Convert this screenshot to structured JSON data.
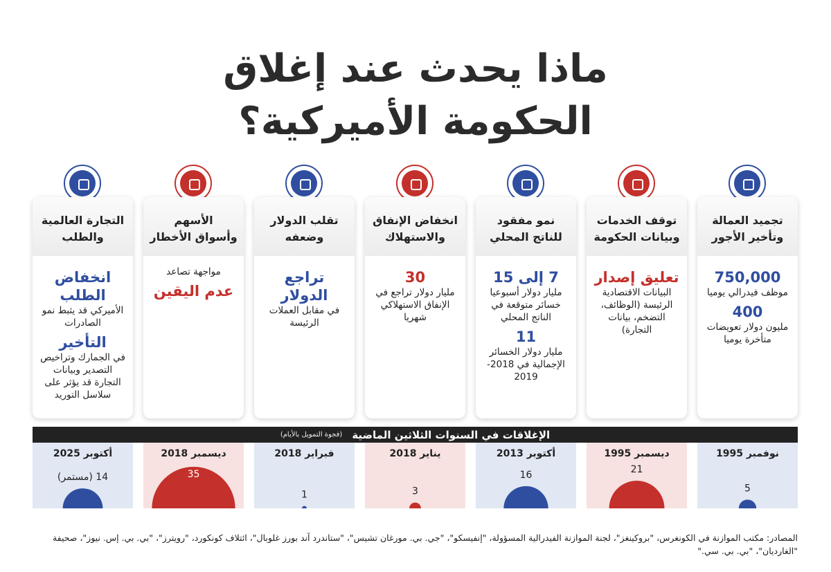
{
  "title": [
    "ماذا يحدث عند إغلاق",
    "الحكومة الأميركية؟"
  ],
  "cards": [
    {
      "color": "#2f4ea0",
      "header": [
        "تجميد العمالة",
        "وتأخير الأجور"
      ],
      "body": [
        {
          "style": "hl",
          "text": "750,000"
        },
        {
          "style": "normal",
          "text": "موظف فيدرالي يوميا"
        },
        {
          "style": "hl",
          "text": "400"
        },
        {
          "style": "normal",
          "text": "مليون دولار تعويضات متأخرة يوميا"
        }
      ]
    },
    {
      "color": "#c4302b",
      "header": [
        "توقف الخدمات",
        "وبيانات الحكومة"
      ],
      "body": [
        {
          "style": "hl",
          "text": "تعليق إصدار"
        },
        {
          "style": "normal",
          "text": "البيانات الاقتصادية الرئيسة (الوظائف، التضخم، بيانات التجارة)"
        }
      ]
    },
    {
      "color": "#2f4ea0",
      "header": [
        "نمو مفقود",
        "للناتج المحلي"
      ],
      "body": [
        {
          "style": "hl",
          "text": "7 إلى 15"
        },
        {
          "style": "normal",
          "text": "مليار دولار أسبوعيا خسائر متوقعة في الناتج المحلي"
        },
        {
          "style": "hl",
          "text": "11"
        },
        {
          "style": "normal",
          "text": "مليار دولار الخسائر الإجمالية في 2018-2019"
        }
      ]
    },
    {
      "color": "#c4302b",
      "header": [
        "انخفاض الإنفاق",
        "والاستهلاك"
      ],
      "body": [
        {
          "style": "hl",
          "text": "30"
        },
        {
          "style": "normal",
          "text": "مليار دولار تراجع في الإنفاق الاستهلاكي شهريا"
        }
      ]
    },
    {
      "color": "#2f4ea0",
      "header": [
        "تقلب الدولار",
        "وضعفه"
      ],
      "body": [
        {
          "style": "hl",
          "text": "تراجع الدولار"
        },
        {
          "style": "normal",
          "text": "في مقابل العملات الرئيسة"
        }
      ]
    },
    {
      "color": "#c4302b",
      "header": [
        "الأسهم",
        "وأسواق الأخطار"
      ],
      "body": [
        {
          "style": "normal",
          "text": "مواجهة تصاعد"
        },
        {
          "style": "hl",
          "text": "عدم اليقين"
        }
      ]
    },
    {
      "color": "#2f4ea0",
      "header": [
        "التجارة العالمية",
        "والطلب"
      ],
      "body": [
        {
          "style": "hl",
          "text": "انخفاض الطلب"
        },
        {
          "style": "normal",
          "text": "الأميركي قد يثبط نمو الصادرات"
        },
        {
          "style": "hl",
          "text": "التأخير"
        },
        {
          "style": "normal",
          "text": "في الجمارك وتراخيص التصدير وبيانات التجارة قد يؤثر على سلاسل التوريد"
        }
      ]
    }
  ],
  "chart_data": {
    "type": "bubble",
    "title": "الإغلاقات في السنوات الثلاثين الماضية",
    "subtitle": "(فجوة التمويل بالأيام)",
    "categories": [
      "نوفمبر 1995",
      "ديسمبر 1995",
      "أكتوبر 2013",
      "يناير 2018",
      "فبراير 2018",
      "ديسمبر 2018",
      "أكتوبر 2025"
    ],
    "values": [
      5,
      21,
      16,
      3,
      1,
      35,
      14
    ],
    "value_labels": [
      "5",
      "21",
      "16",
      "3",
      "1",
      "35",
      "14 (مستمر)"
    ],
    "colors": [
      "#2f4ea0",
      "#c4302b",
      "#2f4ea0",
      "#c4302b",
      "#2f4ea0",
      "#c4302b",
      "#2f4ea0"
    ]
  },
  "sources": "المصادر: مكتب الموازنة في الكونغرس، \"بروكينغز\"، لجنة الموازنة الفيدرالية المسؤولة، \"إنفيسكو\"، \"جي. بي. مورغان تشيس\"، \"ستاندرد آند بورز غلوبال\"، ائتلاف كونكورد، \"رويترز\"، \"بي. بي. إس. نيوز\"، صحيفة \"الغارديان\"، \"بي. بي. سي.\""
}
